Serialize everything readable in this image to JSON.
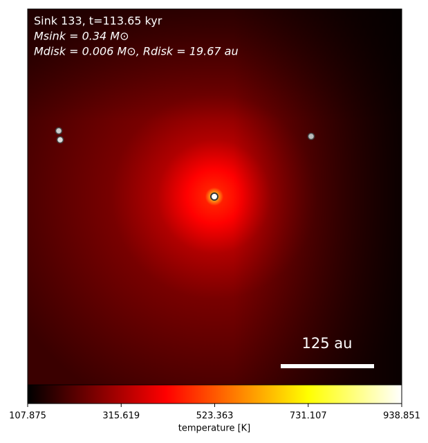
{
  "chart_data": {
    "type": "heatmap",
    "annotations": [
      "Sink 133, t=113.65 kyr",
      "Msink = 0.34 M⊙",
      "Mdisk = 0.006 M⊙, Rdisk = 19.67 au"
    ],
    "scale_bar_label": "125 au",
    "colorbar_label": "temperature [K]",
    "colormap": "hot",
    "clim": [
      107.875,
      938.851
    ],
    "cticks": [
      107.875,
      315.619,
      523.363,
      731.107,
      938.851
    ]
  }
}
